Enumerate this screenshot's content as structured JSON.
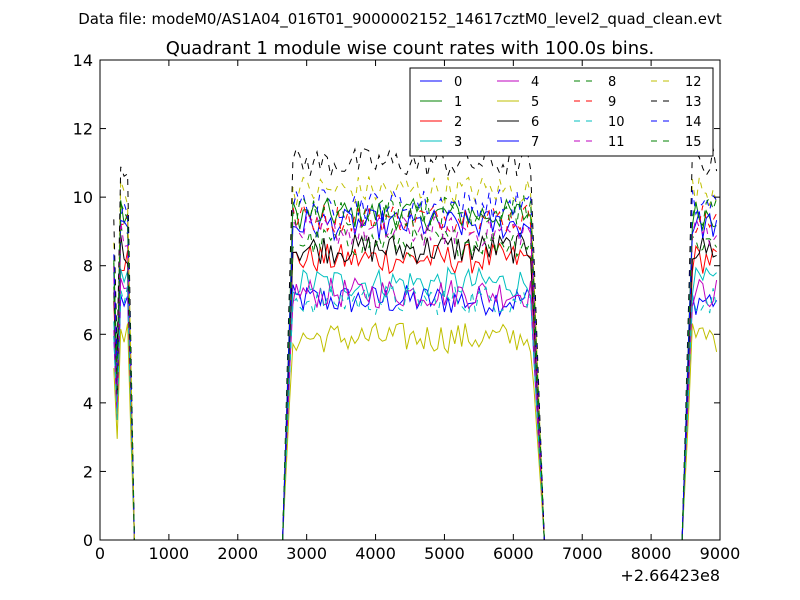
{
  "suptitle": "Data file: modeM0/AS1A04_016T01_9000002152_14617cztM0_level2_quad_clean.evt",
  "chart_data": {
    "type": "line",
    "title": "Quadrant 1 module wise count rates with 100.0s bins.",
    "xlabel": "",
    "ylabel": "",
    "x_offset_label": "+2.66423e8",
    "xlim": [
      0,
      9000
    ],
    "ylim": [
      0,
      14
    ],
    "xticks": [
      0,
      1000,
      2000,
      3000,
      4000,
      5000,
      6000,
      7000,
      8000,
      9000
    ],
    "yticks": [
      0,
      2,
      4,
      6,
      8,
      10,
      12,
      14
    ],
    "grid": false,
    "legend_placement": "top-right",
    "legend_columns": 4,
    "segments": [
      {
        "x_start": 200,
        "x_end": 500,
        "ramp_end": 300,
        "drop_start": 400
      },
      {
        "x_start": 2650,
        "x_end": 6450,
        "ramp_end": 2800,
        "drop_start": 6250
      },
      {
        "x_start": 8450,
        "x_end": 8950,
        "ramp_end": 8600,
        "drop_start": 8950
      }
    ],
    "step": 50,
    "series": [
      {
        "name": "0",
        "color": "#0000ff",
        "dash": "solid",
        "level": 7.0
      },
      {
        "name": "1",
        "color": "#008000",
        "dash": "solid",
        "level": 9.5
      },
      {
        "name": "2",
        "color": "#ff0000",
        "dash": "solid",
        "level": 8.2
      },
      {
        "name": "3",
        "color": "#00bfbf",
        "dash": "solid",
        "level": 7.5
      },
      {
        "name": "4",
        "color": "#bf00bf",
        "dash": "solid",
        "level": 7.2
      },
      {
        "name": "5",
        "color": "#bfbf00",
        "dash": "solid",
        "level": 5.9
      },
      {
        "name": "6",
        "color": "#000000",
        "dash": "solid",
        "level": 8.5
      },
      {
        "name": "7",
        "color": "#0000ff",
        "dash": "solid",
        "level": 9.2
      },
      {
        "name": "8",
        "color": "#008000",
        "dash": "dashed",
        "level": 8.7
      },
      {
        "name": "9",
        "color": "#ff0000",
        "dash": "dashed",
        "level": 9.4
      },
      {
        "name": "10",
        "color": "#00bfbf",
        "dash": "dashed",
        "level": 7.0
      },
      {
        "name": "11",
        "color": "#bf00bf",
        "dash": "dashed",
        "level": 9.0
      },
      {
        "name": "12",
        "color": "#bfbf00",
        "dash": "dashed",
        "level": 10.2
      },
      {
        "name": "13",
        "color": "#000000",
        "dash": "dashed",
        "level": 11.0
      },
      {
        "name": "14",
        "color": "#0000ff",
        "dash": "dashed",
        "level": 9.8
      },
      {
        "name": "15",
        "color": "#008000",
        "dash": "dashed",
        "level": 9.6
      }
    ]
  }
}
